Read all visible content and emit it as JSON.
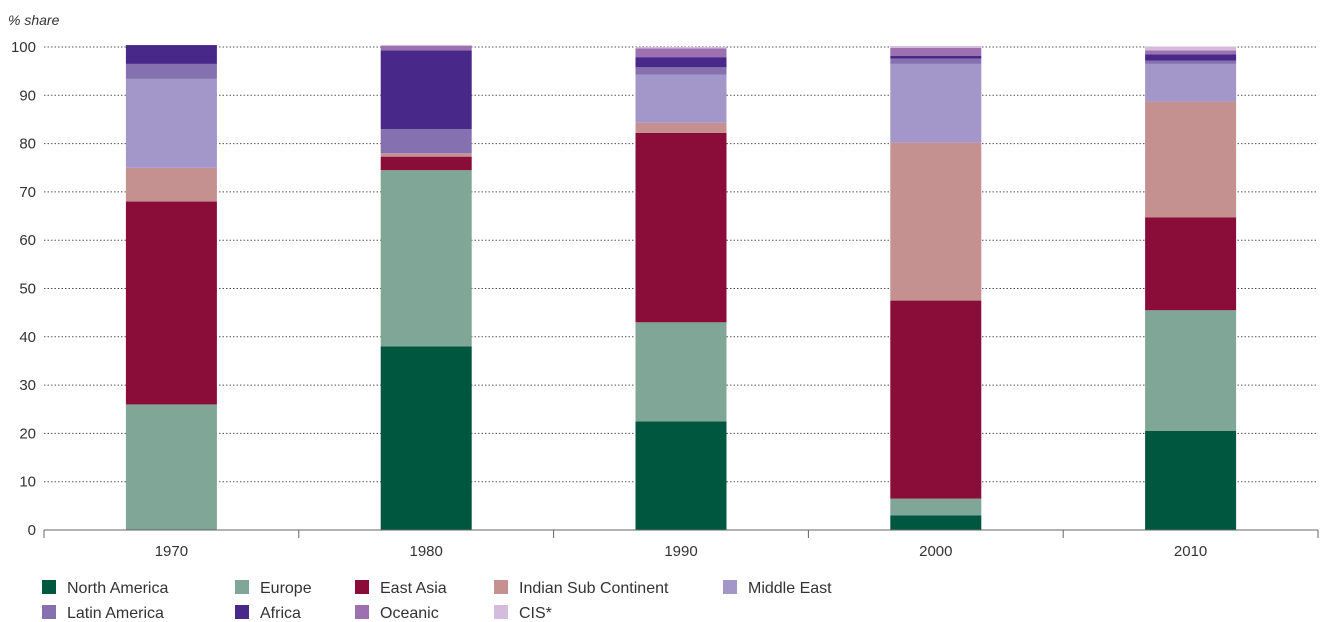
{
  "chart_data": {
    "type": "bar",
    "stacked": true,
    "ylabel": "% share",
    "ylim": [
      0,
      100
    ],
    "yticks": [
      "0",
      "10",
      "20",
      "30",
      "40",
      "50",
      "60",
      "70",
      "80",
      "90",
      "100"
    ],
    "grid": "horizontal dotted",
    "categories": [
      "1970",
      "1980",
      "1990",
      "2000",
      "2010"
    ],
    "legend_position": "bottom",
    "series": [
      {
        "name": "North America",
        "color": "#00573f",
        "values": [
          0,
          38,
          22.5,
          3,
          20.5
        ]
      },
      {
        "name": "Europe",
        "color": "#80a697",
        "values": [
          26,
          36.5,
          20.5,
          3.5,
          25
        ]
      },
      {
        "name": "East Asia",
        "color": "#8a0c38",
        "values": [
          42,
          2.8,
          39.2,
          41,
          19.2
        ]
      },
      {
        "name": "Indian Sub Continent",
        "color": "#c49090",
        "values": [
          7,
          0.7,
          2.1,
          32.7,
          24
        ]
      },
      {
        "name": "Middle East",
        "color": "#a396c8",
        "values": [
          18.4,
          0,
          10,
          16.3,
          7.8
        ]
      },
      {
        "name": "Latin America",
        "color": "#8570b0",
        "values": [
          3.1,
          5,
          1.5,
          1.1,
          0.7
        ]
      },
      {
        "name": "Africa",
        "color": "#482888",
        "values": [
          3.9,
          16.3,
          2.1,
          0.6,
          1.3
        ]
      },
      {
        "name": "Oceanic",
        "color": "#9d70b0",
        "values": [
          0,
          1,
          1.8,
          1.6,
          0.8
        ]
      },
      {
        "name": "CIS*",
        "color": "#d4bcdc",
        "values": [
          0,
          0,
          0.3,
          0.4,
          0.8
        ]
      }
    ]
  }
}
